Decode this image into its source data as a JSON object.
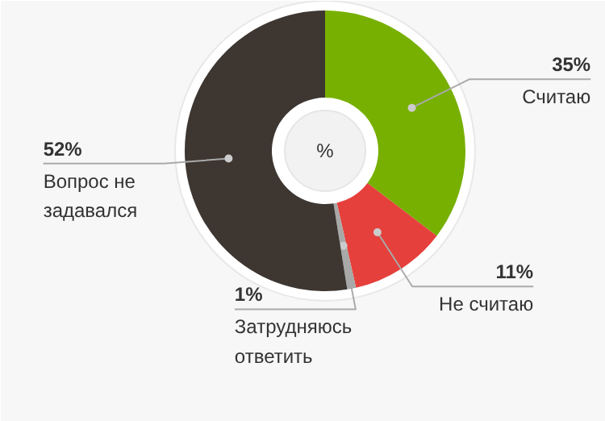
{
  "chart_data": {
    "type": "donut",
    "title": "%",
    "categories": [
      "Считаю",
      "Не считаю",
      "Затрудняюсь\nответить",
      "Вопрос не\nзадавался"
    ],
    "values": [
      35,
      11,
      1,
      52
    ],
    "value_labels": [
      "35%",
      "11%",
      "1%",
      "52%"
    ],
    "colors": [
      "#77b000",
      "#e5403b",
      "#a8a8a8",
      "#3d3631"
    ]
  }
}
